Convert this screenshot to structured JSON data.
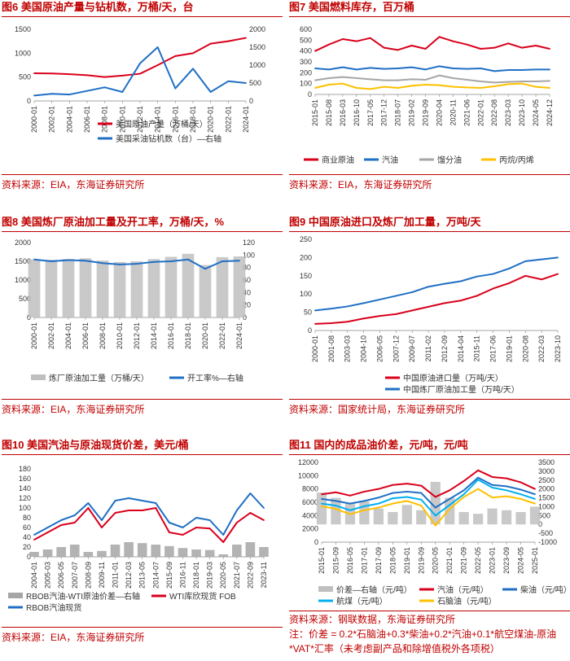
{
  "charts": [
    {
      "title": "图6  美国原油产量与钻机数，万桶/天，台",
      "source": "资料来源：EIA，东海证券研究所",
      "chart_data": {
        "type": "line",
        "x": [
          "2000-01",
          "2002-01",
          "2004-01",
          "2006-01",
          "2008-01",
          "2010-01",
          "2012-01",
          "2014-01",
          "2016-01",
          "2018-01",
          "2020-01",
          "2022-01",
          "2024-01"
        ],
        "y_left_ticks": [
          "0",
          "500",
          "1000",
          "1500"
        ],
        "y_right_ticks": [
          "0",
          "500",
          "1000",
          "1500",
          "2000"
        ],
        "ylim_left": [
          0,
          1500
        ],
        "ylim_right": [
          0,
          2000
        ],
        "series": [
          {
            "name": "美国原油产量（万桶/天）",
            "axis": "left",
            "color": "#d9001b",
            "values": [
              580,
              575,
              560,
              540,
              500,
              530,
              570,
              750,
              940,
              1000,
              1200,
              1250,
              1320
            ]
          },
          {
            "name": "美国采油钻机数（台）—右轴",
            "axis": "right",
            "color": "#1f6fc5",
            "values": [
              150,
              200,
              180,
              280,
              380,
              250,
              1050,
              1500,
              350,
              900,
              250,
              550,
              500
            ]
          }
        ]
      }
    },
    {
      "title": "图7  美国燃料库存，百万桶",
      "source": "资料来源：EIA，东海证券研究所",
      "chart_data": {
        "type": "line",
        "x": [
          "2015-01",
          "2015-08",
          "2016-03",
          "2016-10",
          "2017-05",
          "2017-12",
          "2018-07",
          "2019-02",
          "2019-09",
          "2020-04",
          "2020-11",
          "2021-06",
          "2022-01",
          "2022-08",
          "2023-03",
          "2023-10",
          "2024-05",
          "2024-12"
        ],
        "y_ticks": [
          "0",
          "100",
          "200",
          "300",
          "400",
          "500",
          "600"
        ],
        "ylim": [
          0,
          600
        ],
        "series": [
          {
            "name": "商业原油",
            "color": "#d9001b",
            "values": [
              400,
              460,
              510,
              490,
              520,
              430,
              410,
              450,
              420,
              530,
              490,
              460,
              420,
              430,
              470,
              430,
              450,
              420
            ]
          },
          {
            "name": "汽油",
            "color": "#1f6fc5",
            "values": [
              240,
              230,
              250,
              230,
              245,
              235,
              240,
              250,
              230,
              260,
              240,
              235,
              240,
              215,
              225,
              225,
              230,
              230
            ]
          },
          {
            "name": "馏分油",
            "color": "#a6a6a6",
            "values": [
              130,
              150,
              160,
              150,
              140,
              130,
              130,
              140,
              135,
              175,
              150,
              135,
              120,
              110,
              115,
              120,
              120,
              125
            ]
          },
          {
            "name": "丙烷/丙烯",
            "color": "#ffc000",
            "values": [
              60,
              90,
              100,
              60,
              50,
              70,
              60,
              80,
              90,
              85,
              70,
              65,
              60,
              75,
              95,
              100,
              70,
              60
            ]
          }
        ]
      }
    },
    {
      "title": "图8  美国炼厂原油加工量及开工率，万桶/天，%",
      "source": "资料来源：EIA，东海证券研究所",
      "chart_data": {
        "type": "bar",
        "x": [
          "2000-01",
          "2002-01",
          "2004-01",
          "2006-01",
          "2008-01",
          "2010-01",
          "2012-01",
          "2014-01",
          "2016-01",
          "2018-01",
          "2020-01",
          "2022-01",
          "2024-01"
        ],
        "y_left_ticks": [
          "0",
          "500",
          "1000",
          "1500",
          "2000"
        ],
        "y_right_ticks": [
          "0",
          "20",
          "40",
          "60",
          "80",
          "100",
          "120"
        ],
        "ylim_left": [
          0,
          2000
        ],
        "ylim_right": [
          0,
          120
        ],
        "series": [
          {
            "name": "炼厂原油加工量（万桶/天）",
            "axis": "left",
            "color": "#bfbfbf",
            "values": [
              1550,
              1540,
              1560,
              1580,
              1520,
              1480,
              1500,
              1560,
              1620,
              1700,
              1400,
              1610,
              1630
            ]
          },
          {
            "name": "开工率%—右轴",
            "axis": "right",
            "color": "#1f6fc5",
            "values": [
              93,
              90,
              92,
              91,
              87,
              85,
              86,
              89,
              90,
              93,
              78,
              90,
              91
            ]
          }
        ]
      }
    },
    {
      "title": "图9  中国原油进口及炼厂加工量，万吨/天",
      "source": "资料来源：国家统计局，东海证券研究所",
      "chart_data": {
        "type": "line",
        "x": [
          "2000-01",
          "2001-08",
          "2003-03",
          "2004-10",
          "2006-05",
          "2007-12",
          "2009-07",
          "2011-02",
          "2012-09",
          "2014-04",
          "2015-11",
          "2017-06",
          "2019-01",
          "2020-08",
          "2022-03",
          "2023-10"
        ],
        "y_ticks": [
          "0",
          "50",
          "100",
          "150",
          "200",
          "250"
        ],
        "ylim": [
          0,
          250
        ],
        "series": [
          {
            "name": "中国原油进口量（万吨/天）",
            "color": "#d9001b",
            "values": [
              18,
              20,
              24,
              33,
              40,
              45,
              55,
              65,
              75,
              82,
              95,
              115,
              130,
              150,
              140,
              155
            ]
          },
          {
            "name": "中国炼厂原油加工量（万吨/天）",
            "color": "#1f6fc5",
            "values": [
              55,
              60,
              66,
              75,
              85,
              95,
              105,
              120,
              128,
              135,
              148,
              155,
              170,
              190,
              195,
              200
            ]
          }
        ]
      }
    },
    {
      "title": "图10  美国汽油与原油现货价差，美元/桶",
      "source": "资料来源：EIA，东海证券研究所",
      "chart_data": {
        "type": "line",
        "x": [
          "2004-01",
          "2005-03",
          "2006-05",
          "2007-07",
          "2008-09",
          "2009-11",
          "2011-01",
          "2012-03",
          "2013-05",
          "2014-07",
          "2015-09",
          "2016-11",
          "2018-01",
          "2019-03",
          "2020-05",
          "2021-07",
          "2022-09",
          "2023-11"
        ],
        "y_left_ticks": [
          "0",
          "20",
          "40",
          "60",
          "80",
          "100",
          "120",
          "140",
          "160",
          "180"
        ],
        "ylim": [
          0,
          180
        ],
        "series": [
          {
            "name": "RBOB汽油-WTI原油价差—右轴",
            "axis": "right",
            "color": "#a6a6a6",
            "values": [
              10,
              15,
              20,
              25,
              10,
              12,
              25,
              30,
              28,
              25,
              22,
              18,
              15,
              14,
              5,
              25,
              30,
              20
            ]
          },
          {
            "name": "WTI库欣现货 FOB",
            "color": "#d9001b",
            "values": [
              35,
              50,
              65,
              70,
              100,
              60,
              90,
              95,
              95,
              100,
              50,
              45,
              60,
              58,
              30,
              70,
              90,
              75
            ]
          },
          {
            "name": "RBOB汽油现货",
            "color": "#1f6fc5",
            "values": [
              45,
              60,
              75,
              85,
              110,
              75,
              115,
              120,
              115,
              110,
              70,
              60,
              80,
              75,
              45,
              95,
              130,
              100
            ]
          }
        ]
      }
    },
    {
      "title": "图11  国内的成品油价差，元/吨，元/吨",
      "source": "资料来源：钢联数据，东海证券研究所",
      "note": "注：价差 = 0.2*石脑油+0.3*柴油+0.2*汽油+0.1*航空煤油-原油*VAT*汇率（未考虑副产品和除增值税外各项税）",
      "chart_data": {
        "type": "line",
        "x": [
          "2015-01",
          "2015-09",
          "2016-05",
          "2017-01",
          "2017-09",
          "2018-05",
          "2019-01",
          "2019-09",
          "2020-05",
          "2021-01",
          "2021-09",
          "2022-05",
          "2023-01",
          "2023-09",
          "2024-05",
          "2025-01"
        ],
        "y_left_ticks": [
          "0",
          "2000",
          "4000",
          "6000",
          "8000",
          "10000",
          "12000"
        ],
        "y_right_ticks": [
          "-1000",
          "-500",
          "0",
          "500",
          "1000",
          "1500",
          "2000",
          "2500",
          "3000",
          "3500"
        ],
        "ylim_left": [
          0,
          12000
        ],
        "ylim_right": [
          -1000,
          3500
        ],
        "series": [
          {
            "name": "价差—右轴（元/吨）",
            "axis": "right",
            "color": "#bfbfbf",
            "values": [
              1800,
              1500,
              1200,
              1300,
              900,
              700,
              1100,
              800,
              2400,
              1500,
              700,
              600,
              900,
              800,
              700,
              1000
            ]
          },
          {
            "name": "汽油（元/吨）",
            "color": "#d9001b",
            "values": [
              7200,
              7500,
              7000,
              7600,
              8000,
              8600,
              8800,
              8500,
              6800,
              7800,
              9200,
              10800,
              9800,
              9600,
              9000,
              8000
            ]
          },
          {
            "name": "柴油（元/吨）",
            "color": "#1f6fc5",
            "values": [
              6500,
              6200,
              5800,
              6200,
              6700,
              7400,
              7600,
              7400,
              5200,
              6500,
              7800,
              9700,
              8600,
              8400,
              7900,
              7200
            ]
          },
          {
            "name": "航煤（元/吨）",
            "color": "#00b0f0",
            "values": [
              5800,
              5500,
              4800,
              5400,
              5800,
              6600,
              6800,
              6400,
              4000,
              5600,
              7200,
              9400,
              8200,
              7800,
              7200,
              6500
            ]
          },
          {
            "name": "石脑油（元/吨）",
            "color": "#ffc000",
            "values": [
              5400,
              5000,
              4200,
              4800,
              5200,
              5800,
              6200,
              5500,
              2500,
              5000,
              6800,
              8000,
              6700,
              6900,
              6500,
              5800
            ]
          }
        ]
      }
    }
  ]
}
